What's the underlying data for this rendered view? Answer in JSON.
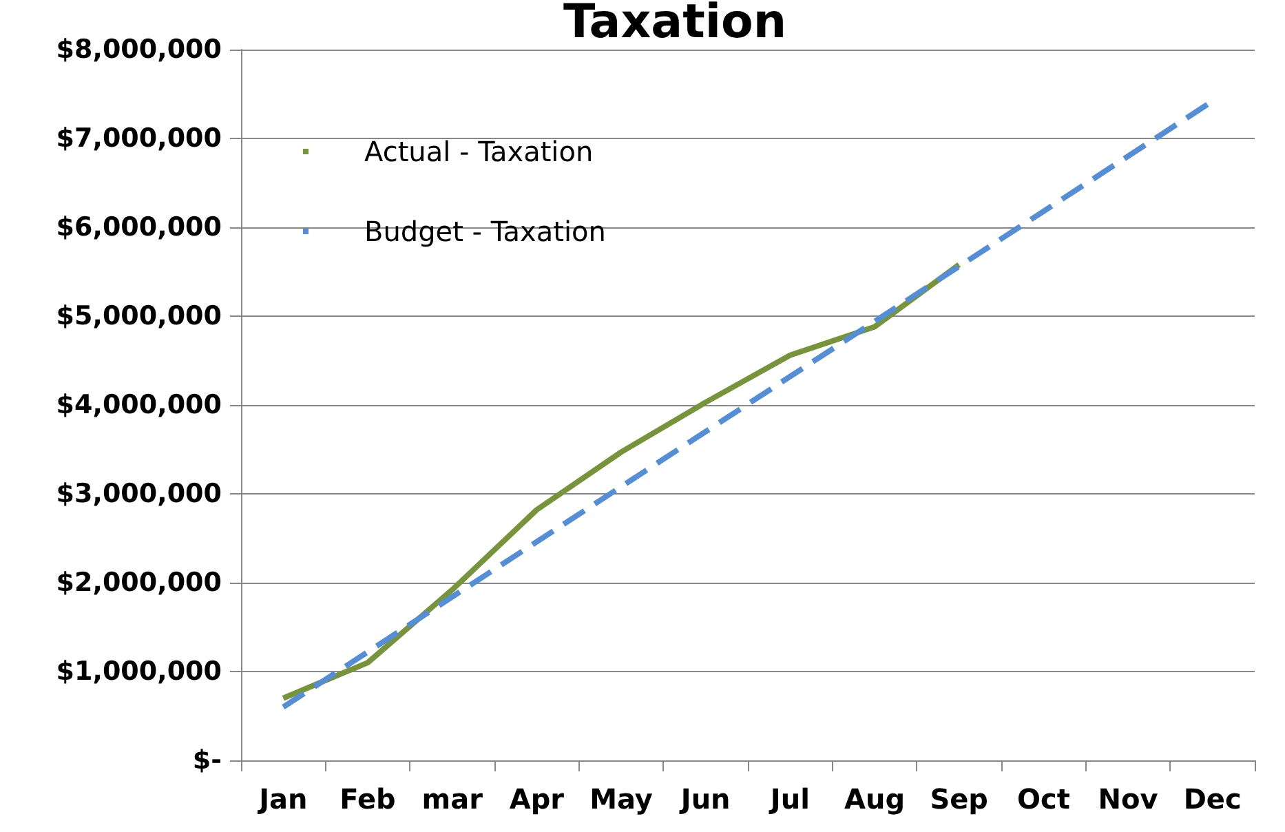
{
  "chart_data": {
    "type": "line",
    "title": "Taxation",
    "categories": [
      "Jan",
      "Feb",
      "mar",
      "Apr",
      "May",
      "Jun",
      "Jul",
      "Aug",
      "Sep",
      "Oct",
      "Nov",
      "Dec"
    ],
    "series": [
      {
        "name": "Actual - Taxation",
        "color": "#77933c",
        "line_style": "solid",
        "values": [
          700000,
          1100000,
          1920000,
          2820000,
          3470000,
          4030000,
          4560000,
          4880000,
          5580000,
          null,
          null,
          null
        ]
      },
      {
        "name": "Budget - Taxation",
        "color": "#558ed5",
        "line_style": "dashed",
        "values": [
          600000,
          1220000,
          1840000,
          2460000,
          3080000,
          3700000,
          4320000,
          4940000,
          5560000,
          6180000,
          6800000,
          7420000
        ]
      }
    ],
    "ylim": [
      0,
      8000000
    ],
    "yticks": [
      {
        "value": 0,
        "label": "$-"
      },
      {
        "value": 1000000,
        "label": "$1,000,000"
      },
      {
        "value": 2000000,
        "label": "$2,000,000"
      },
      {
        "value": 3000000,
        "label": "$3,000,000"
      },
      {
        "value": 4000000,
        "label": "$4,000,000"
      },
      {
        "value": 5000000,
        "label": "$5,000,000"
      },
      {
        "value": 6000000,
        "label": "$6,000,000"
      },
      {
        "value": 7000000,
        "label": "$7,000,000"
      },
      {
        "value": 8000000,
        "label": "$8,000,000"
      }
    ],
    "grid": "y",
    "legend": "top left",
    "marker": "none"
  }
}
